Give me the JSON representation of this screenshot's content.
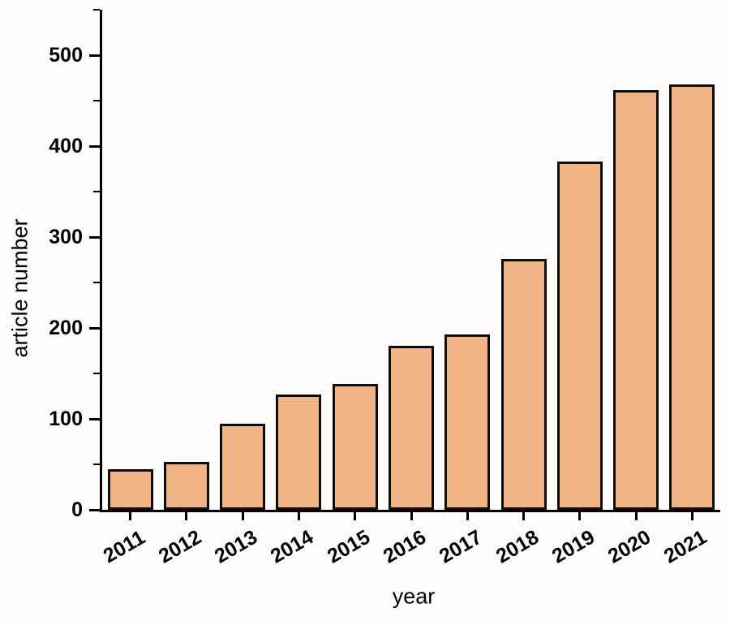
{
  "chart_data": {
    "type": "bar",
    "title": "",
    "xlabel": "year",
    "ylabel": "article number",
    "categories": [
      "2011",
      "2012",
      "2013",
      "2014",
      "2015",
      "2016",
      "2017",
      "2018",
      "2019",
      "2020",
      "2021"
    ],
    "values": [
      45,
      53,
      95,
      127,
      138,
      180,
      193,
      276,
      383,
      462,
      468
    ],
    "ylim": [
      0,
      550
    ],
    "y_major_ticks": [
      0,
      100,
      200,
      300,
      400,
      500
    ],
    "y_minor_step": 50,
    "grid": false,
    "legend": null,
    "bar_color": "#f2b484",
    "bar_border_color": "#0d0d0d",
    "axis_color": "#000000",
    "background_color": "#fdfcfa"
  }
}
